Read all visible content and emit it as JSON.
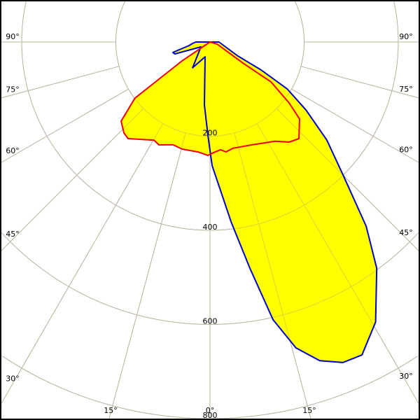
{
  "chart_data": {
    "type": "polar",
    "angle_ticks": [
      {
        "label": "90°",
        "angle": 90
      },
      {
        "label": "75°",
        "angle": 75
      },
      {
        "label": "60°",
        "angle": 60
      },
      {
        "label": "45°",
        "angle": 45
      },
      {
        "label": "30°",
        "angle": 30
      },
      {
        "label": "15°",
        "angle": 15
      },
      {
        "label": "0°",
        "angle": 0
      }
    ],
    "radial_ticks": [
      "200",
      "400",
      "600",
      "800"
    ],
    "radial_values": [
      200,
      400,
      600,
      800
    ],
    "rlim": [
      0,
      800
    ],
    "grid": true,
    "fill_color": "#ffff00",
    "series": [
      {
        "color": "#0000cc",
        "points": [
          [
            90,
            19
          ],
          [
            63.4,
            66
          ],
          [
            61.3,
            124
          ],
          [
            58.7,
            192
          ],
          [
            54.7,
            250
          ],
          [
            50,
            324
          ],
          [
            45,
            400
          ],
          [
            40.3,
            513
          ],
          [
            36.4,
            597
          ],
          [
            30.6,
            691
          ],
          [
            25.9,
            739
          ],
          [
            22.5,
            737
          ],
          [
            19,
            716
          ],
          [
            15.7,
            675
          ],
          [
            12.8,
            605
          ],
          [
            10,
            488
          ],
          [
            6.7,
            385
          ],
          [
            1,
            263
          ],
          [
            0,
            230
          ],
          [
            -1.3,
            198
          ],
          [
            -5.1,
            134
          ],
          [
            -18.4,
            33
          ],
          [
            -34,
            66
          ],
          [
            -61.7,
            22
          ],
          [
            -71.2,
            79
          ],
          [
            -74.2,
            82
          ],
          [
            -80.5,
            45
          ],
          [
            -85.4,
            37
          ],
          [
            -90,
            30
          ]
        ]
      },
      {
        "color": "#ee0000",
        "points": [
          [
            0,
            0
          ],
          [
            -56,
            72
          ],
          [
            -54,
            134
          ],
          [
            -53.2,
            199
          ],
          [
            -48.3,
            253
          ],
          [
            -43.4,
            266
          ],
          [
            -40.3,
            269
          ],
          [
            -29.7,
            240
          ],
          [
            -26.4,
            244
          ],
          [
            -19.8,
            232
          ],
          [
            -14.7,
            235
          ],
          [
            -6.2,
            235
          ],
          [
            -1.1,
            241
          ],
          [
            2.6,
            234
          ],
          [
            5.6,
            230
          ],
          [
            8.3,
            236
          ],
          [
            12.2,
            231
          ],
          [
            22.2,
            236
          ],
          [
            33.2,
            252
          ],
          [
            38.3,
            271
          ],
          [
            42.6,
            279
          ],
          [
            49.3,
            251
          ],
          [
            52.4,
            212
          ],
          [
            56.8,
            155
          ],
          [
            57.4,
            83
          ],
          [
            73.3,
            16
          ]
        ]
      }
    ]
  }
}
